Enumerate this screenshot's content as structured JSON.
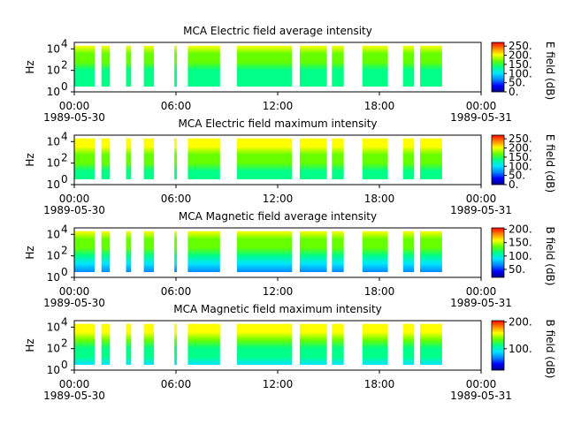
{
  "chart_data": [
    {
      "type": "heatmap",
      "title": "MCA  Electric field average intensity",
      "ylabel": "Hz",
      "colorbar_label": "E field (dB)",
      "colorbar_ticks": [
        "0.",
        "50.",
        "100.",
        "150.",
        "200.",
        "250."
      ],
      "colorbar_range": [
        0,
        270
      ],
      "yticks": [
        "10",
        "10",
        "10"
      ],
      "yticks_exp": [
        "0",
        "2",
        "4"
      ],
      "xticks": [
        "00:00",
        "06:00",
        "12:00",
        "18:00",
        "00:00"
      ],
      "xtick_dates": [
        "1989-05-30",
        "",
        "",
        "",
        "1989-05-31"
      ],
      "x_range_hours": [
        0,
        24
      ],
      "y_range_log10": [
        0,
        4.6
      ],
      "data_segments_hours": [
        [
          0.0,
          1.2
        ],
        [
          1.6,
          2.1
        ],
        [
          3.05,
          3.35
        ],
        [
          4.1,
          4.7
        ],
        [
          5.9,
          6.05
        ],
        [
          6.7,
          8.6
        ],
        [
          9.6,
          12.85
        ],
        [
          13.3,
          14.9
        ],
        [
          15.2,
          15.9
        ],
        [
          17.0,
          18.5
        ],
        [
          19.4,
          20.05
        ],
        [
          20.4,
          21.7
        ]
      ],
      "band_levels": [
        0.45,
        0.5,
        0.55,
        0.6,
        0.65,
        0.7
      ],
      "colormap": [
        "#00008b",
        "#0000ff",
        "#0088ff",
        "#00e5ff",
        "#00ff88",
        "#66ff00",
        "#ffff00",
        "#ff8800",
        "#ff0000"
      ]
    },
    {
      "type": "heatmap",
      "title": "MCA  Electric field maximum intensity",
      "ylabel": "Hz",
      "colorbar_label": "E field (dB)",
      "colorbar_ticks": [
        "0.",
        "50.",
        "100.",
        "150.",
        "200.",
        "250."
      ],
      "colorbar_range": [
        0,
        270
      ],
      "yticks": [
        "10",
        "10",
        "10"
      ],
      "yticks_exp": [
        "0",
        "2",
        "4"
      ],
      "xticks": [
        "00:00",
        "06:00",
        "12:00",
        "18:00",
        "00:00"
      ],
      "xtick_dates": [
        "1989-05-30",
        "",
        "",
        "",
        "1989-05-31"
      ],
      "x_range_hours": [
        0,
        24
      ],
      "y_range_log10": [
        0,
        4.6
      ],
      "data_segments_hours": [
        [
          0.0,
          1.2
        ],
        [
          1.6,
          2.1
        ],
        [
          3.05,
          3.35
        ],
        [
          4.1,
          4.7
        ],
        [
          5.9,
          6.05
        ],
        [
          6.7,
          8.6
        ],
        [
          9.6,
          12.85
        ],
        [
          13.3,
          14.9
        ],
        [
          15.2,
          15.9
        ],
        [
          17.0,
          18.5
        ],
        [
          19.4,
          20.05
        ],
        [
          20.4,
          21.7
        ]
      ],
      "band_levels": [
        0.5,
        0.55,
        0.6,
        0.65,
        0.7,
        0.75
      ],
      "colormap": [
        "#00008b",
        "#0000ff",
        "#0088ff",
        "#00e5ff",
        "#00ff88",
        "#66ff00",
        "#ffff00",
        "#ff8800",
        "#ff0000"
      ]
    },
    {
      "type": "heatmap",
      "title": "MCA  Magnetic field average intensity",
      "ylabel": "Hz",
      "colorbar_label": "B field (dB)",
      "colorbar_ticks": [
        "50.",
        "100.",
        "150.",
        "200."
      ],
      "colorbar_range": [
        20,
        205
      ],
      "yticks": [
        "10",
        "10",
        "10"
      ],
      "yticks_exp": [
        "0",
        "2",
        "4"
      ],
      "xticks": [
        "00:00",
        "06:00",
        "12:00",
        "18:00",
        "00:00"
      ],
      "xtick_dates": [
        "1989-05-30",
        "",
        "",
        "",
        "1989-05-31"
      ],
      "x_range_hours": [
        0,
        24
      ],
      "y_range_log10": [
        0,
        4.6
      ],
      "data_segments_hours": [
        [
          0.0,
          1.2
        ],
        [
          1.6,
          2.1
        ],
        [
          3.05,
          3.35
        ],
        [
          4.1,
          4.7
        ],
        [
          5.9,
          6.05
        ],
        [
          6.7,
          8.6
        ],
        [
          9.6,
          12.85
        ],
        [
          13.3,
          14.9
        ],
        [
          15.2,
          15.9
        ],
        [
          17.0,
          18.5
        ],
        [
          19.4,
          20.05
        ],
        [
          20.4,
          21.7
        ]
      ],
      "band_levels": [
        0.3,
        0.4,
        0.5,
        0.6,
        0.65,
        0.7
      ],
      "colormap": [
        "#00008b",
        "#0000ff",
        "#0088ff",
        "#00e5ff",
        "#00ff88",
        "#66ff00",
        "#ffff00",
        "#ff8800",
        "#ff0000"
      ]
    },
    {
      "type": "heatmap",
      "title": "MCA  Magnetic field maximum intensity",
      "ylabel": "Hz",
      "colorbar_label": "B field (dB)",
      "colorbar_ticks": [
        "100.",
        "200."
      ],
      "colorbar_range": [
        20,
        205
      ],
      "yticks": [
        "10",
        "10",
        "10"
      ],
      "yticks_exp": [
        "0",
        "2",
        "4"
      ],
      "xticks": [
        "00:00",
        "06:00",
        "12:00",
        "18:00",
        "00:00"
      ],
      "xtick_dates": [
        "1989-05-30",
        "",
        "",
        "",
        "1989-05-31"
      ],
      "x_range_hours": [
        0,
        24
      ],
      "y_range_log10": [
        0,
        4.6
      ],
      "data_segments_hours": [
        [
          0.0,
          1.2
        ],
        [
          1.6,
          2.1
        ],
        [
          3.05,
          3.35
        ],
        [
          4.1,
          4.7
        ],
        [
          5.9,
          6.05
        ],
        [
          6.7,
          8.6
        ],
        [
          9.6,
          12.85
        ],
        [
          13.3,
          14.9
        ],
        [
          15.2,
          15.9
        ],
        [
          17.0,
          18.5
        ],
        [
          19.4,
          20.05
        ],
        [
          20.4,
          21.7
        ]
      ],
      "band_levels": [
        0.35,
        0.45,
        0.55,
        0.62,
        0.7,
        0.75
      ],
      "colormap": [
        "#00008b",
        "#0000ff",
        "#0088ff",
        "#00e5ff",
        "#00ff88",
        "#66ff00",
        "#ffff00",
        "#ff8800",
        "#ff0000"
      ]
    }
  ]
}
